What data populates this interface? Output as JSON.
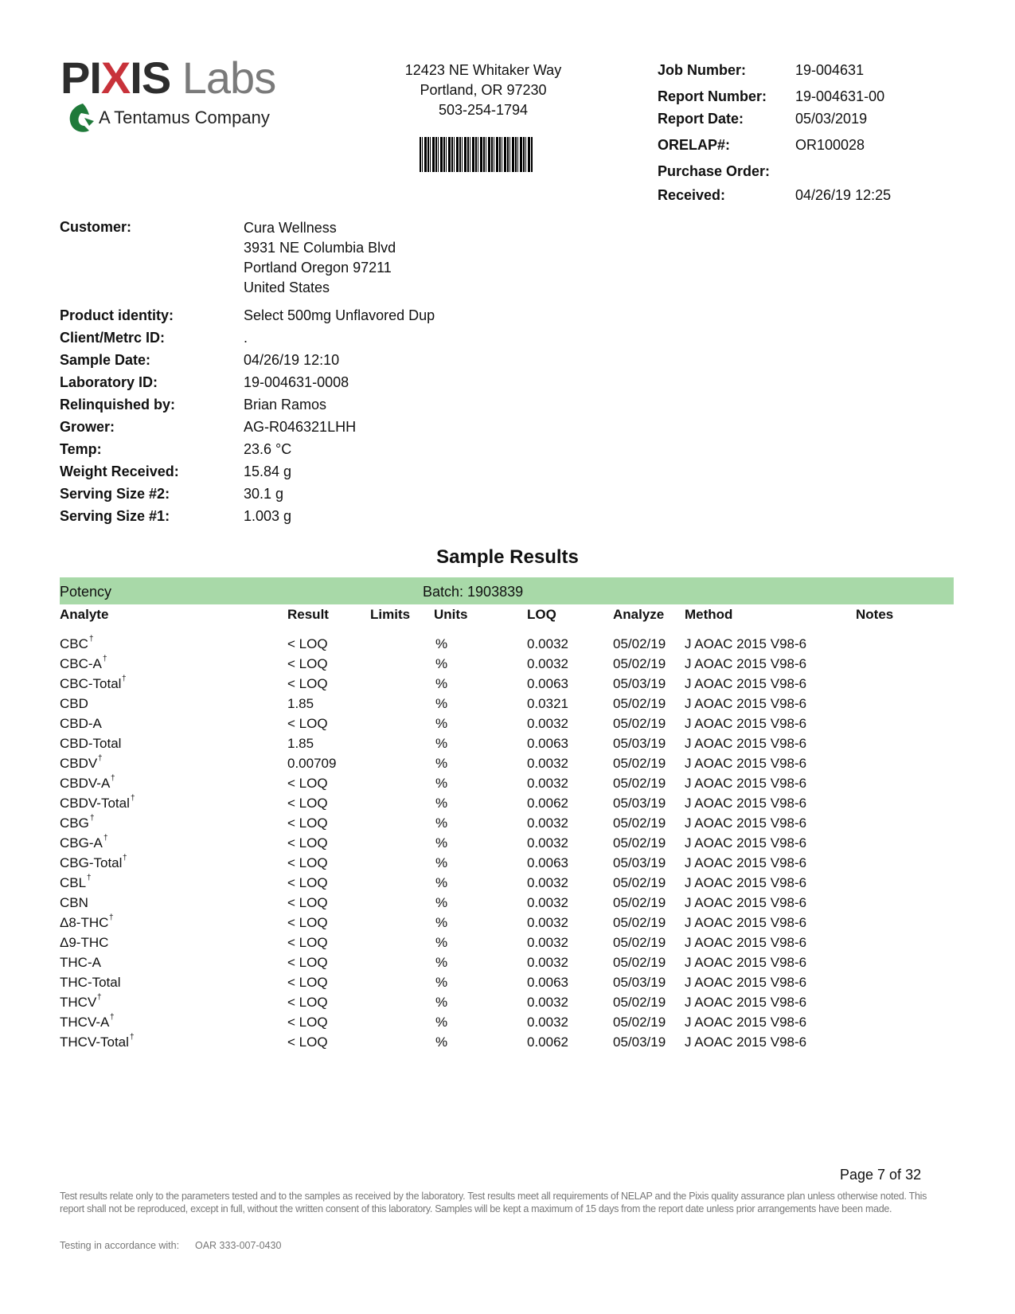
{
  "logo": {
    "pi": "PI",
    "x": "X",
    "is": "IS",
    "labs": "Labs",
    "tagline": "A Tentamus Company",
    "colors": {
      "dark": "#2d2d2d",
      "red": "#c8323a",
      "gray": "#7a7a7a",
      "green": "#1f7a3a"
    }
  },
  "address": {
    "line1": "12423 NE Whitaker Way",
    "line2": "Portland, OR 97230",
    "phone": "503-254-1794"
  },
  "report_info": [
    {
      "label": "Job Number:",
      "value": "19-004631"
    },
    {
      "label": "Report Number:",
      "value": "19-004631-00"
    },
    {
      "label": "Report Date:",
      "value": "05/03/2019"
    },
    {
      "label": "ORELAP#:",
      "value": "OR100028"
    },
    {
      "label": "Purchase Order:",
      "value": ""
    },
    {
      "label": "Received:",
      "value": "04/26/19  12:25"
    }
  ],
  "customer": {
    "label": "Customer:",
    "lines": [
      "Cura Wellness",
      "3931 NE Columbia Blvd",
      "Portland Oregon 97211",
      "United States"
    ]
  },
  "sample_info": [
    {
      "label": "Product identity:",
      "value": "Select 500mg Unflavored Dup"
    },
    {
      "label": "Client/Metrc ID:",
      "value": "."
    },
    {
      "label": "Sample Date:",
      "value": "04/26/19 12:10"
    },
    {
      "label": "Laboratory ID:",
      "value": "19-004631-0008"
    },
    {
      "label": "Relinquished by:",
      "value": "Brian Ramos"
    },
    {
      "label": "Grower:",
      "value": "AG-R046321LHH"
    },
    {
      "label": "Temp:",
      "value": "23.6 °C"
    },
    {
      "label": "Weight Received:",
      "value": "15.84 g"
    },
    {
      "label": "Serving Size #2:",
      "value": "30.1 g"
    },
    {
      "label": "Serving Size #1:",
      "value": "1.003 g"
    }
  ],
  "results": {
    "title": "Sample Results",
    "section": "Potency",
    "batch": "Batch: 1903839",
    "section_color": "#a8d9a8",
    "columns": [
      "Analyte",
      "Result",
      "Limits",
      "Units",
      "LOQ",
      "Analyze",
      "Method",
      "Notes"
    ],
    "rows": [
      {
        "analyte": "CBC",
        "mark": "†",
        "result": "< LOQ",
        "limits": "",
        "units": "%",
        "loq": "0.0032",
        "analyze": "05/02/19",
        "method": "J AOAC 2015 V98-6",
        "notes": ""
      },
      {
        "analyte": "CBC-A",
        "mark": "†",
        "result": "< LOQ",
        "limits": "",
        "units": "%",
        "loq": "0.0032",
        "analyze": "05/02/19",
        "method": "J AOAC 2015 V98-6",
        "notes": ""
      },
      {
        "analyte": "CBC-Total",
        "mark": "†",
        "result": "< LOQ",
        "limits": "",
        "units": "%",
        "loq": "0.0063",
        "analyze": "05/03/19",
        "method": "J AOAC 2015 V98-6",
        "notes": ""
      },
      {
        "analyte": "CBD",
        "mark": "",
        "result": "1.85",
        "limits": "",
        "units": "%",
        "loq": "0.0321",
        "analyze": "05/02/19",
        "method": "J AOAC 2015 V98-6",
        "notes": ""
      },
      {
        "analyte": "CBD-A",
        "mark": "",
        "result": "< LOQ",
        "limits": "",
        "units": "%",
        "loq": "0.0032",
        "analyze": "05/02/19",
        "method": "J AOAC 2015 V98-6",
        "notes": ""
      },
      {
        "analyte": "CBD-Total",
        "mark": "",
        "result": "1.85",
        "limits": "",
        "units": "%",
        "loq": "0.0063",
        "analyze": "05/03/19",
        "method": "J AOAC 2015 V98-6",
        "notes": ""
      },
      {
        "analyte": "CBDV",
        "mark": "†",
        "result": "0.00709",
        "limits": "",
        "units": "%",
        "loq": "0.0032",
        "analyze": "05/02/19",
        "method": "J AOAC 2015 V98-6",
        "notes": ""
      },
      {
        "analyte": "CBDV-A",
        "mark": "†",
        "result": "< LOQ",
        "limits": "",
        "units": "%",
        "loq": "0.0032",
        "analyze": "05/02/19",
        "method": "J AOAC 2015 V98-6",
        "notes": ""
      },
      {
        "analyte": "CBDV-Total",
        "mark": "†",
        "result": "< LOQ",
        "limits": "",
        "units": "%",
        "loq": "0.0062",
        "analyze": "05/03/19",
        "method": "J AOAC 2015 V98-6",
        "notes": ""
      },
      {
        "analyte": "CBG",
        "mark": "†",
        "result": "< LOQ",
        "limits": "",
        "units": "%",
        "loq": "0.0032",
        "analyze": "05/02/19",
        "method": "J AOAC 2015 V98-6",
        "notes": ""
      },
      {
        "analyte": "CBG-A",
        "mark": "†",
        "result": "< LOQ",
        "limits": "",
        "units": "%",
        "loq": "0.0032",
        "analyze": "05/02/19",
        "method": "J AOAC 2015 V98-6",
        "notes": ""
      },
      {
        "analyte": "CBG-Total",
        "mark": "†",
        "result": "< LOQ",
        "limits": "",
        "units": "%",
        "loq": "0.0063",
        "analyze": "05/03/19",
        "method": "J AOAC 2015 V98-6",
        "notes": ""
      },
      {
        "analyte": "CBL",
        "mark": "†",
        "result": "< LOQ",
        "limits": "",
        "units": "%",
        "loq": "0.0032",
        "analyze": "05/02/19",
        "method": "J AOAC 2015 V98-6",
        "notes": ""
      },
      {
        "analyte": "CBN",
        "mark": "",
        "result": "< LOQ",
        "limits": "",
        "units": "%",
        "loq": "0.0032",
        "analyze": "05/02/19",
        "method": "J AOAC 2015 V98-6",
        "notes": ""
      },
      {
        "analyte": "Δ8-THC",
        "mark": "†",
        "result": "< LOQ",
        "limits": "",
        "units": "%",
        "loq": "0.0032",
        "analyze": "05/02/19",
        "method": "J AOAC 2015 V98-6",
        "notes": ""
      },
      {
        "analyte": "Δ9-THC",
        "mark": "",
        "result": "< LOQ",
        "limits": "",
        "units": "%",
        "loq": "0.0032",
        "analyze": "05/02/19",
        "method": "J AOAC 2015 V98-6",
        "notes": ""
      },
      {
        "analyte": "THC-A",
        "mark": "",
        "result": "< LOQ",
        "limits": "",
        "units": "%",
        "loq": "0.0032",
        "analyze": "05/02/19",
        "method": "J AOAC 2015 V98-6",
        "notes": ""
      },
      {
        "analyte": "THC-Total",
        "mark": "",
        "result": "< LOQ",
        "limits": "",
        "units": "%",
        "loq": "0.0063",
        "analyze": "05/03/19",
        "method": "J AOAC 2015 V98-6",
        "notes": ""
      },
      {
        "analyte": "THCV",
        "mark": "†",
        "result": "< LOQ",
        "limits": "",
        "units": "%",
        "loq": "0.0032",
        "analyze": "05/02/19",
        "method": "J AOAC 2015 V98-6",
        "notes": ""
      },
      {
        "analyte": "THCV-A",
        "mark": "†",
        "result": "< LOQ",
        "limits": "",
        "units": "%",
        "loq": "0.0032",
        "analyze": "05/02/19",
        "method": "J AOAC 2015 V98-6",
        "notes": ""
      },
      {
        "analyte": "THCV-Total",
        "mark": "†",
        "result": "< LOQ",
        "limits": "",
        "units": "%",
        "loq": "0.0062",
        "analyze": "05/03/19",
        "method": "J AOAC 2015 V98-6",
        "notes": ""
      }
    ]
  },
  "footer": {
    "page": "Page 7 of 32",
    "disclaimer": "Test results relate only to the parameters tested and to the samples as received by the laboratory. Test results meet all requirements of NELAP and the Pixis quality assurance plan unless otherwise noted. This report shall not be reproduced, except in full, without the written consent of this laboratory. Samples will be kept a maximum of 15 days from the report date unless prior arrangements have been made.",
    "testing_label": "Testing in accordance with:",
    "testing_value": "OAR 333-007-0430"
  }
}
